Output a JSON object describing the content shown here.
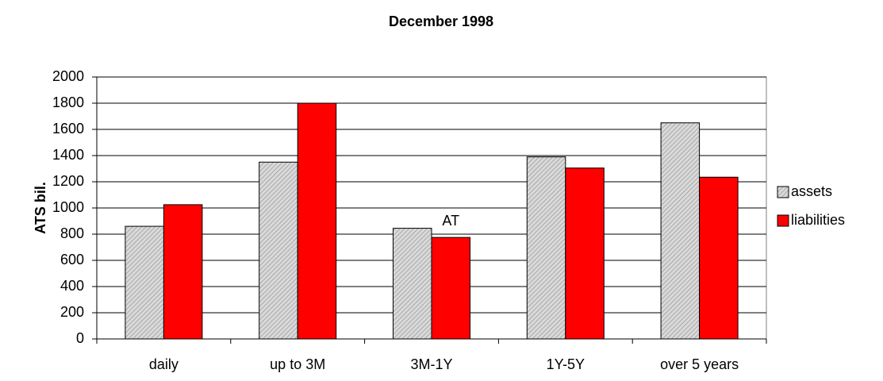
{
  "chart_data": {
    "type": "bar",
    "title": "December 1998",
    "y_label": "ATS bil.",
    "annotation": "AT",
    "categories": [
      "daily",
      "up to 3M",
      "3M-1Y",
      "1Y-5Y",
      "over 5 years"
    ],
    "series": [
      {
        "name": "assets",
        "color": "#d9d9d9",
        "values": [
          860,
          1350,
          845,
          1390,
          1650
        ]
      },
      {
        "name": "liabilities",
        "color": "#ff0000",
        "values": [
          1025,
          1800,
          775,
          1305,
          1235
        ]
      }
    ],
    "ylim": [
      0,
      2000
    ],
    "yticks": [
      0,
      200,
      400,
      600,
      800,
      1000,
      1200,
      1400,
      1600,
      1800,
      2000
    ],
    "grid": true,
    "legend": "right"
  }
}
